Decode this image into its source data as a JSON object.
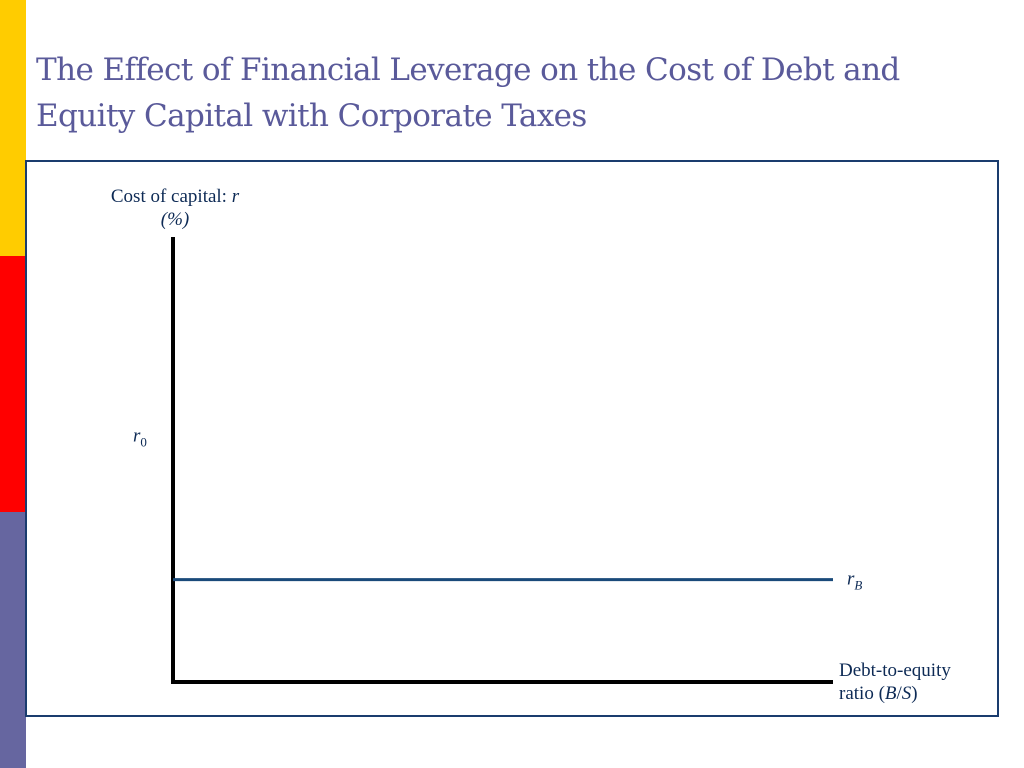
{
  "slide": {
    "title": "The Effect of Financial Leverage on the Cost of Debt and Equity Capital with Corporate Taxes",
    "colors": {
      "title": "#5a5a9a",
      "frame": "#1a3c6e",
      "axis": "#000000",
      "series_line": "#1a4a7a",
      "accent_yellow": "#ffcc00",
      "accent_red": "#ff0000",
      "accent_purple": "#6666a0"
    }
  },
  "chart_data": {
    "type": "line",
    "ylabel": {
      "main": "Cost of capital: ",
      "var": "r",
      "unit": "(%)"
    },
    "xlabel": {
      "line1": "Debt-to-equity",
      "line2_prefix": "ratio (",
      "var_b": "B",
      "slash": "/",
      "var_s": "S",
      "line2_suffix": ")"
    },
    "ylim": [
      0,
      100
    ],
    "xlim": [
      0,
      100
    ],
    "reference_levels": [
      {
        "var": "r",
        "sub": "0",
        "y": 55
      }
    ],
    "series": [
      {
        "var": "r",
        "sub": "B",
        "x": [
          0,
          100
        ],
        "values": [
          23,
          23
        ]
      }
    ],
    "grid": false
  }
}
